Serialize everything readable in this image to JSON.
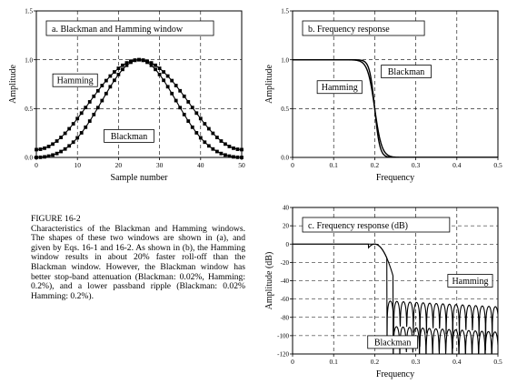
{
  "figure": {
    "label": "FIGURE 16-2",
    "caption": "Characteristics of the Blackman and Hamming windows. The shapes of these two windows are shown in (a), and given by Eqs. 16-1 and 16-2. As shown in (b), the Hamming window results in about 20% faster roll-off than the Blackman window. However, the Blackman window has better stop-band attenuation (Blackman: 0.02%, Hamming: 0.2%), and a lower passband ripple (Blackman: 0.02% Hamming: 0.2%)."
  },
  "chart_data": [
    {
      "type": "line",
      "title": "a.  Blackman and Hamming window",
      "xlabel": "Sample number",
      "ylabel": "Amplitude",
      "xlim": [
        0,
        50
      ],
      "ylim": [
        0,
        1.5
      ],
      "xticks": [
        "0",
        "10",
        "20",
        "30",
        "40",
        "50"
      ],
      "yticks": [
        "0.0",
        "0.5",
        "1.0",
        "1.5"
      ],
      "grid": true,
      "series": [
        {
          "name": "Hamming",
          "label_at": [
            4,
            0.79
          ],
          "formula": "hamming",
          "N": 50
        },
        {
          "name": "Blackman",
          "label_at": [
            16.5,
            0.22
          ],
          "formula": "blackman",
          "N": 50
        }
      ]
    },
    {
      "type": "line",
      "title": "b.  Frequency response",
      "xlabel": "Frequency",
      "ylabel": "Amplitude",
      "xlim": [
        0,
        0.5
      ],
      "ylim": [
        0,
        1.5
      ],
      "xticks": [
        "0",
        "0.1",
        "0.2",
        "0.3",
        "0.4",
        "0.5"
      ],
      "yticks": [
        "0.0",
        "0.5",
        "1.0",
        "1.5"
      ],
      "grid": true,
      "series": [
        {
          "name": "Hamming",
          "label_at": [
            0.06,
            0.72
          ],
          "cutoff": 0.2,
          "transition": 0.04
        },
        {
          "name": "Blackman",
          "label_at": [
            0.216,
            0.88
          ],
          "cutoff": 0.2,
          "transition": 0.055
        }
      ]
    },
    {
      "type": "line",
      "title": "c.  Frequency response (dB)",
      "xlabel": "Frequency",
      "ylabel": "Amplitude (dB)",
      "xlim": [
        0,
        0.5
      ],
      "ylim": [
        -120,
        40
      ],
      "xticks": [
        "0",
        "0.1",
        "0.2",
        "0.3",
        "0.4",
        "0.5"
      ],
      "yticks": [
        "40",
        "20",
        "0",
        "-20",
        "-40",
        "-60",
        "-80",
        "-100",
        "-120"
      ],
      "grid": true,
      "series": [
        {
          "name": "Hamming",
          "label_at": [
            0.378,
            -40
          ],
          "floor_db": -62,
          "first_null": 0.23
        },
        {
          "name": "Blackman",
          "label_at": [
            0.183,
            -107
          ],
          "floor_db": -90,
          "first_null": 0.245
        }
      ]
    }
  ]
}
